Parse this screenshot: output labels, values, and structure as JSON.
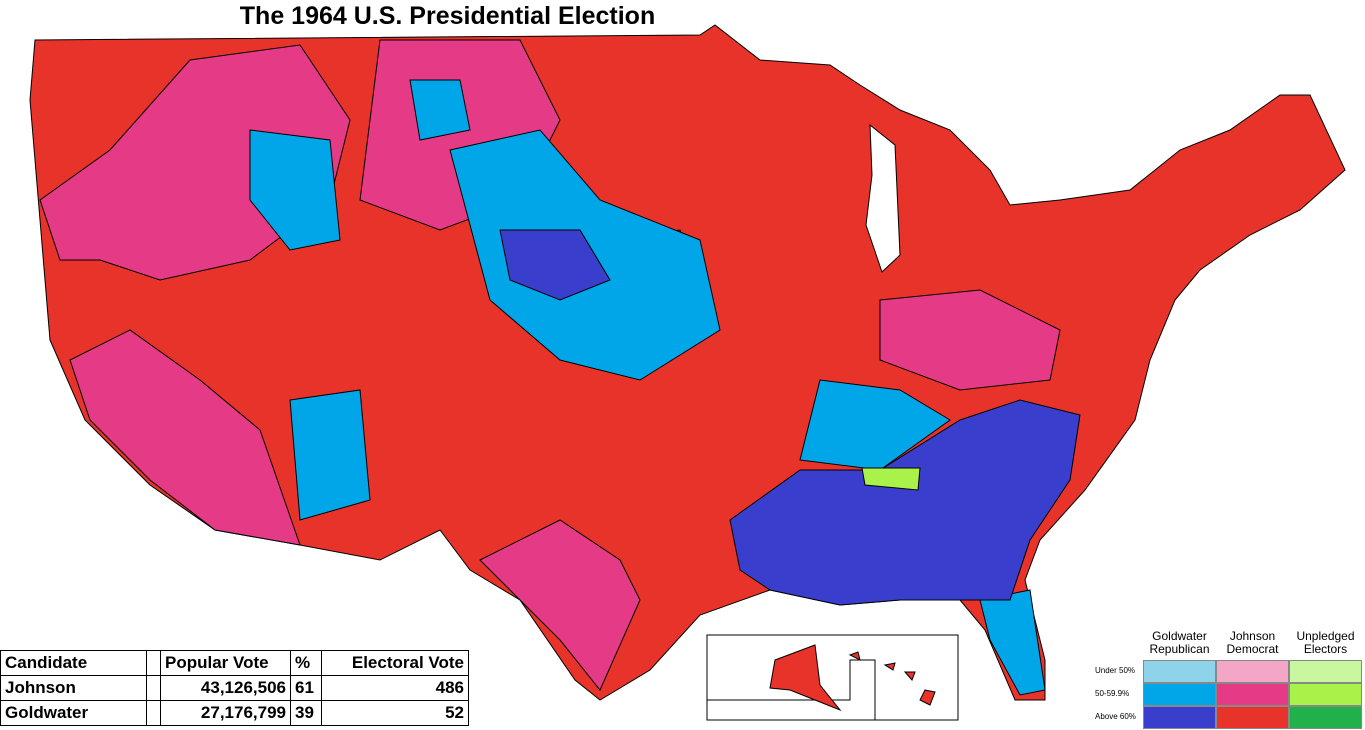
{
  "title": "The 1964 U.S. Presidential Election",
  "table": {
    "headers": [
      "Candidate",
      "Popular Vote",
      "%",
      "Electoral Vote"
    ],
    "rows": [
      [
        "Johnson",
        "43,126,506",
        "61",
        "486"
      ],
      [
        "Goldwater",
        "27,176,799",
        "39",
        "52"
      ]
    ]
  },
  "legend": {
    "columns": [
      "Goldwater Republican",
      "Johnson Democrat",
      "Unpledged Electors"
    ],
    "rows": [
      "Under 50%",
      "50-59.9%",
      "Above 60%"
    ]
  }
}
